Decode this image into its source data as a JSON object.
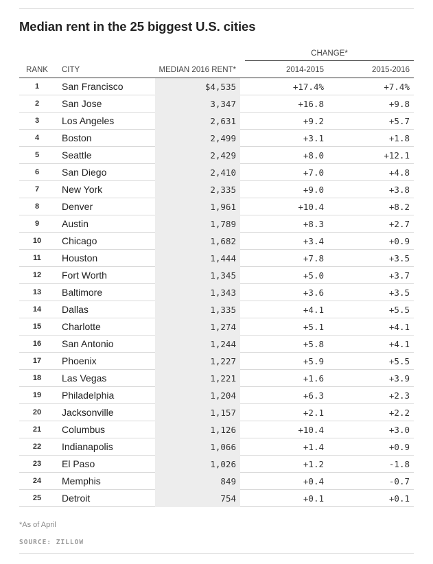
{
  "title": "Median rent in the 25 biggest U.S. cities",
  "change_header": "CHANGE*",
  "columns": {
    "rank": "RANK",
    "city": "CITY",
    "rent": "MEDIAN 2016 RENT*",
    "y1": "2014-2015",
    "y2": "2015-2016"
  },
  "footnote": "*As of April",
  "source": "SOURCE: ZILLOW",
  "chart_data": {
    "type": "table",
    "title": "Median rent in the 25 biggest U.S. cities",
    "columns": [
      "RANK",
      "CITY",
      "MEDIAN 2016 RENT*",
      "2014-2015",
      "2015-2016"
    ],
    "rows": [
      {
        "rank": "1",
        "city": "San Francisco",
        "rent": "$4,535",
        "y1": "+17.4%",
        "y2": "+7.4%"
      },
      {
        "rank": "2",
        "city": "San Jose",
        "rent": "3,347",
        "y1": "+16.8",
        "y2": "+9.8"
      },
      {
        "rank": "3",
        "city": "Los Angeles",
        "rent": "2,631",
        "y1": "+9.2",
        "y2": "+5.7"
      },
      {
        "rank": "4",
        "city": "Boston",
        "rent": "2,499",
        "y1": "+3.1",
        "y2": "+1.8"
      },
      {
        "rank": "5",
        "city": "Seattle",
        "rent": "2,429",
        "y1": "+8.0",
        "y2": "+12.1"
      },
      {
        "rank": "6",
        "city": "San Diego",
        "rent": "2,410",
        "y1": "+7.0",
        "y2": "+4.8"
      },
      {
        "rank": "7",
        "city": "New York",
        "rent": "2,335",
        "y1": "+9.0",
        "y2": "+3.8"
      },
      {
        "rank": "8",
        "city": "Denver",
        "rent": "1,961",
        "y1": "+10.4",
        "y2": "+8.2"
      },
      {
        "rank": "9",
        "city": "Austin",
        "rent": "1,789",
        "y1": "+8.3",
        "y2": "+2.7"
      },
      {
        "rank": "10",
        "city": "Chicago",
        "rent": "1,682",
        "y1": "+3.4",
        "y2": "+0.9"
      },
      {
        "rank": "11",
        "city": "Houston",
        "rent": "1,444",
        "y1": "+7.8",
        "y2": "+3.5"
      },
      {
        "rank": "12",
        "city": "Fort Worth",
        "rent": "1,345",
        "y1": "+5.0",
        "y2": "+3.7"
      },
      {
        "rank": "13",
        "city": "Baltimore",
        "rent": "1,343",
        "y1": "+3.6",
        "y2": "+3.5"
      },
      {
        "rank": "14",
        "city": "Dallas",
        "rent": "1,335",
        "y1": "+4.1",
        "y2": "+5.5"
      },
      {
        "rank": "15",
        "city": "Charlotte",
        "rent": "1,274",
        "y1": "+5.1",
        "y2": "+4.1"
      },
      {
        "rank": "16",
        "city": "San Antonio",
        "rent": "1,244",
        "y1": "+5.8",
        "y2": "+4.1"
      },
      {
        "rank": "17",
        "city": "Phoenix",
        "rent": "1,227",
        "y1": "+5.9",
        "y2": "+5.5"
      },
      {
        "rank": "18",
        "city": "Las Vegas",
        "rent": "1,221",
        "y1": "+1.6",
        "y2": "+3.9"
      },
      {
        "rank": "19",
        "city": "Philadelphia",
        "rent": "1,204",
        "y1": "+6.3",
        "y2": "+2.3"
      },
      {
        "rank": "20",
        "city": "Jacksonville",
        "rent": "1,157",
        "y1": "+2.1",
        "y2": "+2.2"
      },
      {
        "rank": "21",
        "city": "Columbus",
        "rent": "1,126",
        "y1": "+10.4",
        "y2": "+3.0"
      },
      {
        "rank": "22",
        "city": "Indianapolis",
        "rent": "1,066",
        "y1": "+1.4",
        "y2": "+0.9"
      },
      {
        "rank": "23",
        "city": "El Paso",
        "rent": "1,026",
        "y1": "+1.2",
        "y2": "-1.8"
      },
      {
        "rank": "24",
        "city": "Memphis",
        "rent": "849",
        "y1": "+0.4",
        "y2": "-0.7"
      },
      {
        "rank": "25",
        "city": "Detroit",
        "rent": "754",
        "y1": "+0.1",
        "y2": "+0.1"
      }
    ]
  }
}
